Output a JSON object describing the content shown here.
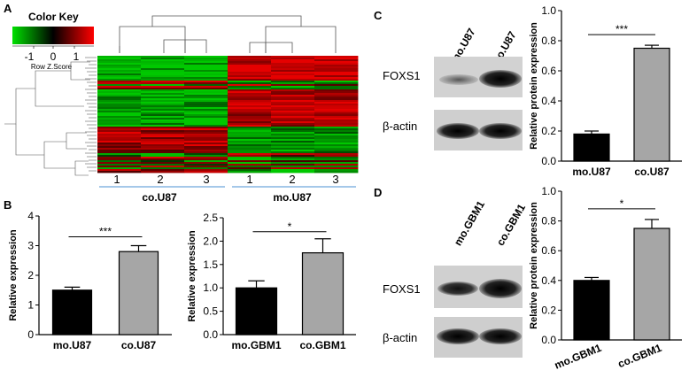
{
  "panels": {
    "A": "A",
    "B": "B",
    "C": "C",
    "D": "D"
  },
  "heatmap": {
    "color_key_title": "Color Key",
    "color_key_ticks": [
      "-1",
      "0",
      "1"
    ],
    "color_key_label": "Row Z.Score",
    "column_numbers": [
      "1",
      "2",
      "3",
      "1",
      "2",
      "3"
    ],
    "group_labels": [
      "co.U87",
      "mo.U87"
    ],
    "colors": {
      "low": "#00c000",
      "mid": "#000000",
      "high": "#e00000"
    }
  },
  "blots": {
    "C": {
      "lanes": [
        "mo.U87",
        "co.U87"
      ],
      "rows": [
        "FOXS1",
        "β-actin"
      ]
    },
    "D": {
      "lanes": [
        "mo.GBM1",
        "co.GBM1"
      ],
      "rows": [
        "FOXS1",
        "β-actin"
      ]
    }
  },
  "chart_data": [
    {
      "id": "B-left",
      "type": "bar",
      "categories": [
        "mo.U87",
        "co.U87"
      ],
      "values": [
        1.5,
        2.8
      ],
      "errors": [
        0.1,
        0.2
      ],
      "colors": [
        "#000000",
        "#a6a6a6"
      ],
      "ylabel": "Relative expression",
      "ylim": [
        0,
        4
      ],
      "yticks": [
        "0",
        "1",
        "2",
        "3",
        "4"
      ],
      "significance": "***"
    },
    {
      "id": "B-right",
      "type": "bar",
      "categories": [
        "mo.GBM1",
        "co.GBM1"
      ],
      "values": [
        1.0,
        1.75
      ],
      "errors": [
        0.15,
        0.3
      ],
      "colors": [
        "#000000",
        "#a6a6a6"
      ],
      "ylabel": "Relative expression",
      "ylim": [
        0,
        2.5
      ],
      "yticks": [
        "0.0",
        "0.5",
        "1.0",
        "1.5",
        "2.0",
        "2.5"
      ],
      "significance": "*"
    },
    {
      "id": "C-chart",
      "type": "bar",
      "categories": [
        "mo.U87",
        "co.U87"
      ],
      "values": [
        0.18,
        0.75
      ],
      "errors": [
        0.02,
        0.02
      ],
      "colors": [
        "#000000",
        "#a6a6a6"
      ],
      "ylabel": "Relative protein expression",
      "ylim": [
        0,
        1.0
      ],
      "yticks": [
        "0.0",
        "0.2",
        "0.4",
        "0.6",
        "0.8",
        "1.0"
      ],
      "significance": "***"
    },
    {
      "id": "D-chart",
      "type": "bar",
      "categories": [
        "mo.GBM1",
        "co.GBM1"
      ],
      "values": [
        0.4,
        0.75
      ],
      "errors": [
        0.02,
        0.06
      ],
      "colors": [
        "#000000",
        "#a6a6a6"
      ],
      "ylabel": "Relative protein expression",
      "ylim": [
        0,
        1.0
      ],
      "yticks": [
        "0.0",
        "0.2",
        "0.4",
        "0.6",
        "0.8",
        "1.0"
      ],
      "significance": "*",
      "rotated_labels": true
    }
  ]
}
